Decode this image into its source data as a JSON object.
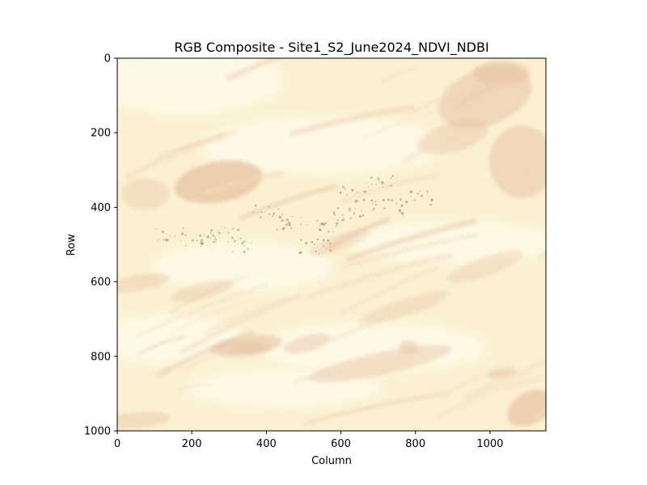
{
  "chart_data": {
    "type": "heatmap",
    "title": "RGB Composite - Site1_S2_June2024_NDVI_NDBI",
    "xlabel": "Column",
    "ylabel": "Row",
    "xlim": [
      0,
      1150
    ],
    "ylim": [
      1000,
      0
    ],
    "x_ticks": [
      0,
      200,
      400,
      600,
      800,
      1000
    ],
    "y_ticks": [
      0,
      200,
      400,
      600,
      800,
      1000
    ],
    "grid": false,
    "image": {
      "rows": 1000,
      "columns": 1150,
      "colors": {
        "background": "#fbf1d2",
        "bright": "#fffbeb",
        "reddish_tan": "#e7c3a3",
        "light_tan": "#f3dcbd",
        "vegetation": "#a5a57d"
      }
    }
  }
}
